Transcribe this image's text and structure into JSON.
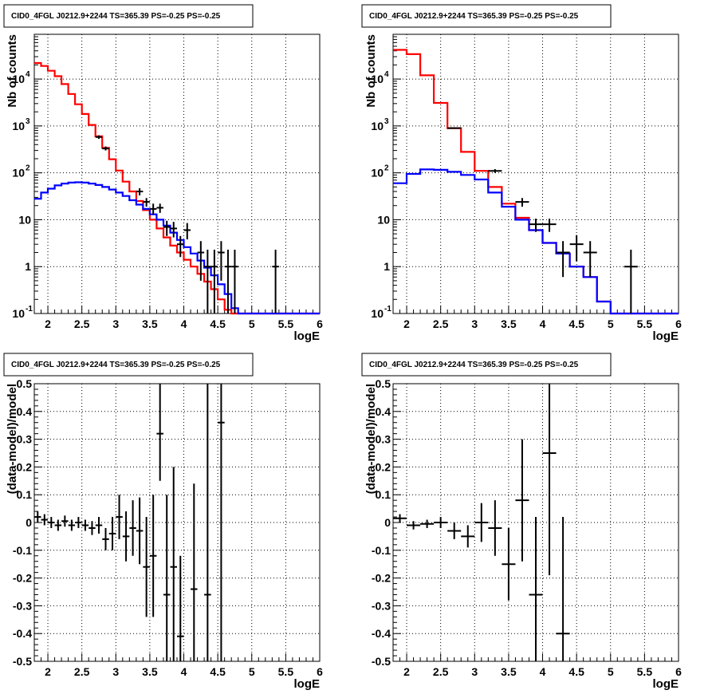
{
  "chart_data": [
    {
      "type": "line",
      "title": "CID0_4FGL J0212.9+2244 TS=365.39 PS=-0.25 PS=-0.25",
      "xlabel": "logE",
      "ylabel": "Nb of counts",
      "xlim": [
        1.8,
        6.0
      ],
      "ylim": [
        0.1,
        90000
      ],
      "yscale": "log",
      "grid": true,
      "xticks": [
        "2",
        "2.5",
        "3",
        "3.5",
        "4",
        "4.5",
        "5",
        "5.5",
        "6"
      ],
      "yticks": [
        {
          "value": 0.1,
          "label": "10",
          "sup": "-1"
        },
        {
          "value": 1,
          "label": "1",
          "sup": ""
        },
        {
          "value": 10,
          "label": "10",
          "sup": ""
        },
        {
          "value": 100,
          "label": "10",
          "sup": "2"
        },
        {
          "value": 1000,
          "label": "10",
          "sup": "3"
        },
        {
          "value": 10000,
          "label": "10",
          "sup": "4"
        }
      ],
      "bin_edges_start": 1.8,
      "bin_width": 0.1,
      "series": [
        {
          "color": "#ff0000",
          "style": "step",
          "values": [
            22000,
            19000,
            15000,
            11500,
            7800,
            4800,
            2900,
            1800,
            1050,
            600,
            340,
            195,
            112,
            65,
            40,
            25,
            16,
            10,
            6.5,
            4.2,
            2.8,
            2,
            1.4,
            1.0,
            0.7,
            0.48,
            0.33,
            0.2,
            0.12,
            0.07,
            0.07,
            0.07,
            0.07,
            0.07,
            0.07,
            0.07,
            0.07,
            0.07,
            0.07,
            0.07,
            0.07,
            0.07
          ]
        },
        {
          "color": "#0000ff",
          "style": "step",
          "values": [
            28,
            38,
            46,
            54,
            59,
            62,
            63,
            62,
            59,
            55,
            50,
            44,
            38,
            32,
            26,
            21,
            17,
            13,
            10,
            7.5,
            5.3,
            3.7,
            2.6,
            1.9,
            1.35,
            0.95,
            0.65,
            0.42,
            0.26,
            0.13,
            0.07,
            0.07,
            0.07,
            0.07,
            0.07,
            0.07,
            0.07,
            0.07,
            0.07,
            0.07,
            0.07,
            0.07
          ]
        }
      ],
      "points": [
        {
          "x": 2.75,
          "y": 580,
          "xerr": 0.05,
          "ylo": 530,
          "yhi": 630
        },
        {
          "x": 2.85,
          "y": 330,
          "xerr": 0.05,
          "ylo": 300,
          "yhi": 365
        },
        {
          "x": 3.35,
          "y": 40,
          "xerr": 0.05,
          "ylo": 33,
          "yhi": 47
        },
        {
          "x": 3.45,
          "y": 24,
          "xerr": 0.05,
          "ylo": 19,
          "yhi": 29
        },
        {
          "x": 3.55,
          "y": 17,
          "xerr": 0.05,
          "ylo": 13,
          "yhi": 22
        },
        {
          "x": 3.65,
          "y": 18,
          "xerr": 0.05,
          "ylo": 14,
          "yhi": 22
        },
        {
          "x": 3.75,
          "y": 7,
          "xerr": 0.05,
          "ylo": 4.5,
          "yhi": 9.5
        },
        {
          "x": 3.85,
          "y": 6.5,
          "xerr": 0.05,
          "ylo": 4.2,
          "yhi": 9
        },
        {
          "x": 3.95,
          "y": 3,
          "xerr": 0.05,
          "ylo": 1.6,
          "yhi": 4.5
        },
        {
          "x": 4.05,
          "y": 6,
          "xerr": 0.05,
          "ylo": 3.8,
          "yhi": 8.5
        },
        {
          "x": 4.25,
          "y": 2,
          "xerr": 0.05,
          "ylo": 0.5,
          "yhi": 3.5
        },
        {
          "x": 4.35,
          "y": 1,
          "xerr": 0.05,
          "ylo": 0.1,
          "yhi": 2.3
        },
        {
          "x": 4.45,
          "y": 1,
          "xerr": 0.05,
          "ylo": 0.1,
          "yhi": 2.3
        },
        {
          "x": 4.55,
          "y": 2,
          "xerr": 0.05,
          "ylo": 0.5,
          "yhi": 3.5
        },
        {
          "x": 4.65,
          "y": 1,
          "xerr": 0.05,
          "ylo": 0.1,
          "yhi": 2.3
        },
        {
          "x": 4.75,
          "y": 1,
          "xerr": 0.05,
          "ylo": 0.1,
          "yhi": 2.3
        },
        {
          "x": 5.35,
          "y": 1,
          "xerr": 0.05,
          "ylo": 0.1,
          "yhi": 2.3
        }
      ]
    },
    {
      "type": "line",
      "title": "CID0_4FGL J0212.9+2244 TS=365.39 PS=-0.25 PS=-0.25",
      "xlabel": "logE",
      "ylabel": "Nb of counts",
      "xlim": [
        1.8,
        6.0
      ],
      "ylim": [
        0.1,
        90000
      ],
      "yscale": "log",
      "grid": true,
      "xticks": [
        "2",
        "2.5",
        "3",
        "3.5",
        "4",
        "4.5",
        "5",
        "5.5",
        "6"
      ],
      "yticks": [
        {
          "value": 0.1,
          "label": "10",
          "sup": "-1"
        },
        {
          "value": 1,
          "label": "1",
          "sup": ""
        },
        {
          "value": 10,
          "label": "10",
          "sup": ""
        },
        {
          "value": 100,
          "label": "10",
          "sup": "2"
        },
        {
          "value": 1000,
          "label": "10",
          "sup": "3"
        },
        {
          "value": 10000,
          "label": "10",
          "sup": "4"
        }
      ],
      "bin_edges_start": 1.8,
      "bin_width": 0.2,
      "series": [
        {
          "color": "#ff0000",
          "style": "step",
          "values": [
            42000,
            34000,
            12000,
            3100,
            900,
            280,
            110,
            50,
            22,
            11,
            6,
            3.2,
            1.9,
            1.0,
            0.6,
            0.18,
            0.07,
            0.07,
            0.07,
            0.07,
            0.07
          ]
        },
        {
          "color": "#0000ff",
          "style": "step",
          "values": [
            60,
            95,
            118,
            116,
            105,
            90,
            72,
            38,
            19,
            10,
            6,
            3.2,
            1.9,
            1.0,
            0.6,
            0.18,
            0.07,
            0.07,
            0.07,
            0.07,
            0.07
          ]
        }
      ],
      "points": [
        {
          "x": 2.7,
          "y": 900,
          "xerr": 0.1,
          "ylo": 870,
          "yhi": 930
        },
        {
          "x": 3.3,
          "y": 110,
          "xerr": 0.1,
          "ylo": 100,
          "yhi": 120
        },
        {
          "x": 3.7,
          "y": 24,
          "xerr": 0.1,
          "ylo": 19,
          "yhi": 29
        },
        {
          "x": 3.9,
          "y": 8,
          "xerr": 0.1,
          "ylo": 5.5,
          "yhi": 10.5
        },
        {
          "x": 4.1,
          "y": 8,
          "xerr": 0.1,
          "ylo": 5.5,
          "yhi": 10.5
        },
        {
          "x": 4.3,
          "y": 2,
          "xerr": 0.1,
          "ylo": 0.6,
          "yhi": 3.5
        },
        {
          "x": 4.5,
          "y": 3,
          "xerr": 0.1,
          "ylo": 1.3,
          "yhi": 4.7
        },
        {
          "x": 4.7,
          "y": 2,
          "xerr": 0.1,
          "ylo": 0.6,
          "yhi": 3.5
        },
        {
          "x": 5.3,
          "y": 1,
          "xerr": 0.1,
          "ylo": 0.1,
          "yhi": 2.3
        }
      ]
    },
    {
      "type": "scatter",
      "title": "CID0_4FGL J0212.9+2244 TS=365.39 PS=-0.25 PS=-0.25",
      "xlabel": "logE",
      "ylabel": "(data-model)/model",
      "xlim": [
        1.8,
        6.0
      ],
      "ylim": [
        -0.5,
        0.5
      ],
      "grid": true,
      "xticks": [
        "2",
        "2.5",
        "3",
        "3.5",
        "4",
        "4.5",
        "5",
        "5.5",
        "6"
      ],
      "yticks": [
        "-0.5",
        "-0.4",
        "-0.3",
        "-0.2",
        "-0.1",
        "0",
        "0.1",
        "0.2",
        "0.3",
        "0.4",
        "0.5"
      ],
      "points": [
        {
          "x": 1.85,
          "y": 0.02,
          "xerr": 0.05,
          "ylo": 0.0,
          "yhi": 0.04
        },
        {
          "x": 1.95,
          "y": 0.01,
          "xerr": 0.05,
          "ylo": -0.01,
          "yhi": 0.03
        },
        {
          "x": 2.05,
          "y": 0.0,
          "xerr": 0.05,
          "ylo": -0.02,
          "yhi": 0.02
        },
        {
          "x": 2.15,
          "y": -0.01,
          "xerr": 0.05,
          "ylo": -0.03,
          "yhi": 0.01
        },
        {
          "x": 2.25,
          "y": 0.005,
          "xerr": 0.05,
          "ylo": -0.015,
          "yhi": 0.025
        },
        {
          "x": 2.35,
          "y": -0.01,
          "xerr": 0.05,
          "ylo": -0.03,
          "yhi": 0.01
        },
        {
          "x": 2.45,
          "y": 0.0,
          "xerr": 0.05,
          "ylo": -0.02,
          "yhi": 0.02
        },
        {
          "x": 2.55,
          "y": -0.01,
          "xerr": 0.05,
          "ylo": -0.03,
          "yhi": 0.01
        },
        {
          "x": 2.65,
          "y": -0.02,
          "xerr": 0.05,
          "ylo": -0.045,
          "yhi": 0.005
        },
        {
          "x": 2.75,
          "y": -0.01,
          "xerr": 0.05,
          "ylo": -0.04,
          "yhi": 0.02
        },
        {
          "x": 2.85,
          "y": -0.06,
          "xerr": 0.05,
          "ylo": -0.1,
          "yhi": -0.02
        },
        {
          "x": 2.95,
          "y": -0.04,
          "xerr": 0.05,
          "ylo": -0.1,
          "yhi": 0.02
        },
        {
          "x": 3.05,
          "y": 0.02,
          "xerr": 0.05,
          "ylo": -0.06,
          "yhi": 0.1
        },
        {
          "x": 3.15,
          "y": -0.05,
          "xerr": 0.05,
          "ylo": -0.14,
          "yhi": 0.04
        },
        {
          "x": 3.25,
          "y": -0.02,
          "xerr": 0.05,
          "ylo": -0.12,
          "yhi": 0.08
        },
        {
          "x": 3.35,
          "y": -0.03,
          "xerr": 0.05,
          "ylo": -0.15,
          "yhi": 0.09
        },
        {
          "x": 3.45,
          "y": -0.16,
          "xerr": 0.05,
          "ylo": -0.34,
          "yhi": 0.02
        },
        {
          "x": 3.55,
          "y": -0.12,
          "xerr": 0.05,
          "ylo": -0.34,
          "yhi": 0.1
        },
        {
          "x": 3.65,
          "y": 0.32,
          "xerr": 0.05,
          "ylo": 0.15,
          "yhi": 0.5
        },
        {
          "x": 3.75,
          "y": -0.26,
          "xerr": 0.05,
          "ylo": -0.5,
          "yhi": 0.1
        },
        {
          "x": 3.85,
          "y": -0.16,
          "xerr": 0.05,
          "ylo": -0.5,
          "yhi": 0.2
        },
        {
          "x": 3.95,
          "y": -0.41,
          "xerr": 0.05,
          "ylo": -0.5,
          "yhi": -0.12
        },
        {
          "x": 4.15,
          "y": -0.24,
          "xerr": 0.05,
          "ylo": -0.5,
          "yhi": 0.14
        },
        {
          "x": 4.35,
          "y": -0.26,
          "xerr": 0.05,
          "ylo": -0.5,
          "yhi": 0.5
        },
        {
          "x": 4.55,
          "y": 0.36,
          "xerr": 0.05,
          "ylo": -0.5,
          "yhi": 0.5
        }
      ]
    },
    {
      "type": "scatter",
      "title": "CID0_4FGL J0212.9+2244 TS=365.39 PS=-0.25 PS=-0.25",
      "xlabel": "logE",
      "ylabel": "(data-model)/model",
      "xlim": [
        1.8,
        6.0
      ],
      "ylim": [
        -0.5,
        0.5
      ],
      "grid": true,
      "xticks": [
        "2",
        "2.5",
        "3",
        "3.5",
        "4",
        "4.5",
        "5",
        "5.5",
        "6"
      ],
      "yticks": [
        "-0.5",
        "-0.4",
        "-0.3",
        "-0.2",
        "-0.1",
        "0",
        "0.1",
        "0.2",
        "0.3",
        "0.4",
        "0.5"
      ],
      "points": [
        {
          "x": 1.9,
          "y": 0.015,
          "xerr": 0.1,
          "ylo": 0.0,
          "yhi": 0.03
        },
        {
          "x": 2.1,
          "y": -0.01,
          "xerr": 0.1,
          "ylo": -0.025,
          "yhi": 0.005
        },
        {
          "x": 2.3,
          "y": -0.005,
          "xerr": 0.1,
          "ylo": -0.02,
          "yhi": 0.01
        },
        {
          "x": 2.5,
          "y": 0.0,
          "xerr": 0.1,
          "ylo": -0.02,
          "yhi": 0.02
        },
        {
          "x": 2.7,
          "y": -0.03,
          "xerr": 0.1,
          "ylo": -0.06,
          "yhi": 0.0
        },
        {
          "x": 2.9,
          "y": -0.05,
          "xerr": 0.1,
          "ylo": -0.09,
          "yhi": -0.01
        },
        {
          "x": 3.1,
          "y": 0.0,
          "xerr": 0.1,
          "ylo": -0.07,
          "yhi": 0.07
        },
        {
          "x": 3.3,
          "y": -0.02,
          "xerr": 0.1,
          "ylo": -0.12,
          "yhi": 0.08
        },
        {
          "x": 3.5,
          "y": -0.15,
          "xerr": 0.1,
          "ylo": -0.28,
          "yhi": -0.02
        },
        {
          "x": 3.7,
          "y": 0.08,
          "xerr": 0.1,
          "ylo": -0.14,
          "yhi": 0.3
        },
        {
          "x": 3.9,
          "y": -0.26,
          "xerr": 0.1,
          "ylo": -0.5,
          "yhi": 0.02
        },
        {
          "x": 4.1,
          "y": 0.25,
          "xerr": 0.1,
          "ylo": -0.19,
          "yhi": 0.5
        },
        {
          "x": 4.3,
          "y": -0.4,
          "xerr": 0.1,
          "ylo": -0.5,
          "yhi": 0.02
        }
      ]
    }
  ]
}
